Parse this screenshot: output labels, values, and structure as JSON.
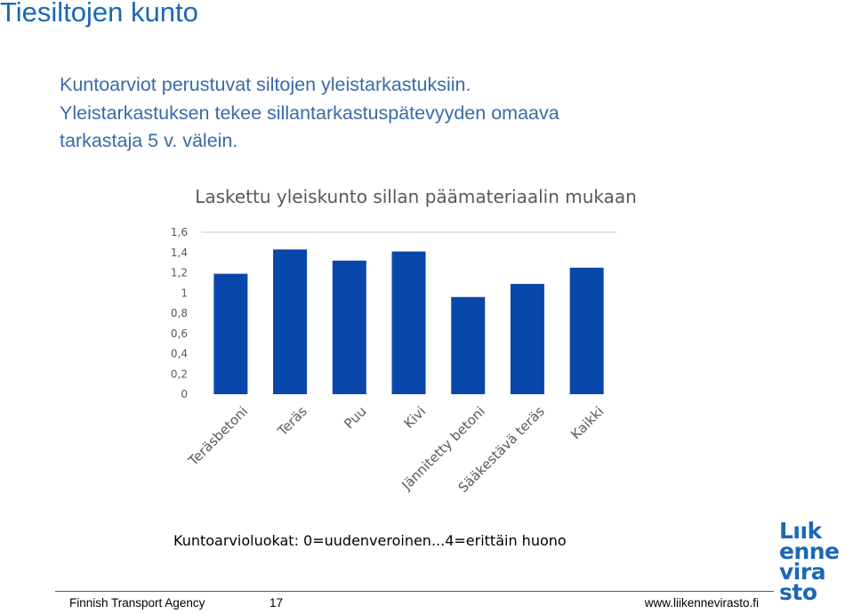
{
  "slide": {
    "title": "Tiesiltojen kunto",
    "intro_lines": [
      "Kuntoarviot perustuvat siltojen yleistarkastuksiin.",
      "Yleistarkastuksen tekee sillantarkastuspätevyyden omaava",
      "tarkastaja 5 v. välein."
    ],
    "footnote": "Kuntoarvioluokat: 0=uudenveroinen...4=erittäin huono"
  },
  "footer": {
    "agency": "Finnish Transport Agency",
    "page": "17",
    "url": "www.liikennevirasto.fi"
  },
  "logo": {
    "lines": [
      "Lıık",
      "enne",
      "vira",
      "sto"
    ]
  },
  "colors": {
    "title": "#1c68b4",
    "intro_text": "#3a6aa8",
    "bar": "#0a47ab",
    "gridline": "#c4c4c4",
    "footer_line": "#1c68b4"
  },
  "chart_data": {
    "type": "bar",
    "title": "Laskettu yleiskunto sillan päämateriaalin mukaan",
    "categories": [
      "Teräsbetoni",
      "Teräs",
      "Puu",
      "Kivi",
      "Jännitetty betoni",
      "Sääkestävä teräs",
      "Kaikki"
    ],
    "values": [
      1.19,
      1.43,
      1.32,
      1.41,
      0.96,
      1.09,
      1.25
    ],
    "yticks": [
      "0",
      "0,2",
      "0,4",
      "0,6",
      "0,8",
      "1",
      "1,2",
      "1,4",
      "1,6"
    ],
    "ylim": [
      0,
      1.6
    ],
    "grid": "top-line-only",
    "legend": "none"
  }
}
